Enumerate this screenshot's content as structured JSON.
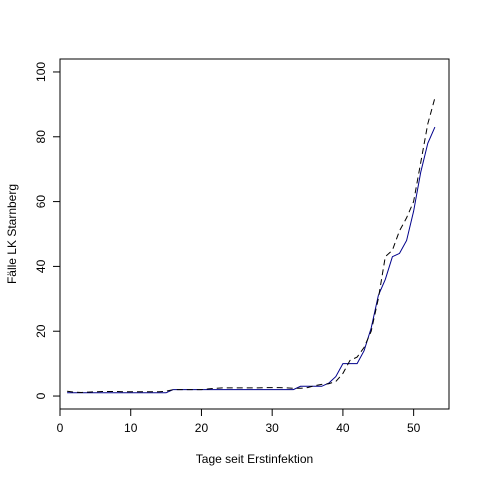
{
  "chart_data": {
    "type": "line",
    "title": "",
    "xlabel": "Tage seit Erstinfektion",
    "ylabel": "Fälle LK Starnberg",
    "xlim": [
      0,
      55
    ],
    "ylim": [
      -4,
      104
    ],
    "x_ticks": [
      0,
      10,
      20,
      30,
      40,
      50
    ],
    "y_ticks": [
      0,
      20,
      40,
      60,
      80,
      100
    ],
    "grid": false,
    "legend": "none",
    "series": [
      {
        "style": "solid",
        "color": "#00008b",
        "x": [
          1,
          2,
          3,
          4,
          5,
          6,
          7,
          8,
          9,
          10,
          11,
          12,
          13,
          14,
          15,
          16,
          17,
          18,
          19,
          20,
          21,
          22,
          23,
          24,
          25,
          26,
          27,
          28,
          29,
          30,
          31,
          32,
          33,
          34,
          35,
          36,
          37,
          38,
          39,
          40,
          41,
          42,
          43,
          44,
          45,
          46,
          47,
          48,
          49,
          50,
          51,
          52,
          53
        ],
        "y": [
          1,
          1,
          1,
          1,
          1,
          1,
          1,
          1,
          1,
          1,
          1,
          1,
          1,
          1,
          1,
          2,
          2,
          2,
          2,
          2,
          2,
          2,
          2,
          2,
          2,
          2,
          2,
          2,
          2,
          2,
          2,
          2,
          2,
          3,
          3,
          3,
          3,
          4,
          6,
          10,
          10,
          10,
          14,
          21,
          31,
          36,
          43,
          44,
          48,
          57,
          69,
          78,
          83
        ]
      },
      {
        "style": "dashed",
        "color": "#000000",
        "x": [
          1,
          2,
          3,
          4,
          5,
          6,
          7,
          8,
          9,
          10,
          11,
          12,
          13,
          14,
          15,
          16,
          17,
          18,
          19,
          20,
          21,
          22,
          23,
          24,
          25,
          26,
          27,
          28,
          29,
          30,
          31,
          32,
          33,
          34,
          35,
          36,
          37,
          38,
          39,
          40,
          41,
          42,
          43,
          44,
          45,
          46,
          47,
          48,
          49,
          50,
          51,
          52,
          53
        ],
        "y": [
          1.5,
          1.2,
          1.1,
          1.2,
          1.3,
          1.4,
          1.4,
          1.4,
          1.3,
          1.3,
          1.3,
          1.3,
          1.3,
          1.3,
          1.5,
          2,
          2,
          2,
          2,
          2,
          2.2,
          2.4,
          2.5,
          2.5,
          2.5,
          2.5,
          2.5,
          2.5,
          2.6,
          2.6,
          2.6,
          2.5,
          2.4,
          2.4,
          2.6,
          3.2,
          3.6,
          3.8,
          4.5,
          7,
          11,
          12,
          15,
          20,
          30,
          43,
          45,
          51,
          55,
          60,
          72,
          84,
          92
        ]
      }
    ]
  }
}
